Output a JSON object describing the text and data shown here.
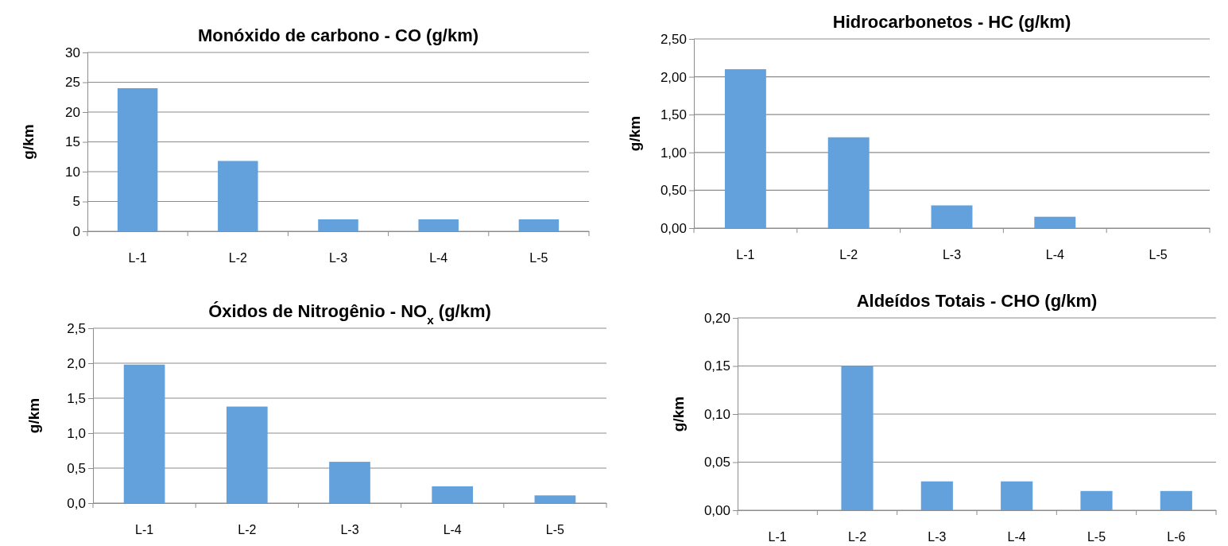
{
  "chart_data": [
    {
      "type": "bar",
      "title": "Monóxido de carbono - CO (g/km)",
      "ylabel": "g/km",
      "categories": [
        "L-1",
        "L-2",
        "L-3",
        "L-4",
        "L-5"
      ],
      "values": [
        24,
        11.8,
        2,
        2,
        2
      ],
      "color": "#63a1dc",
      "ylim": [
        0,
        30
      ],
      "yticks": [
        0,
        5,
        10,
        15,
        20,
        25,
        30
      ],
      "grid": "y"
    },
    {
      "type": "bar",
      "title": "Hidrocarbonetos - HC (g/km)",
      "ylabel": "g/km",
      "categories": [
        "L-1",
        "L-2",
        "L-3",
        "L-4",
        "L-5"
      ],
      "values": [
        2.1,
        1.2,
        0.3,
        0.15,
        0
      ],
      "color": "#63a1dc",
      "ylim": [
        0,
        2.5
      ],
      "yticks": [
        {
          "value": 0,
          "label": "0,00"
        },
        {
          "value": 0.5,
          "label": "0,50"
        },
        {
          "value": 1,
          "label": "1,00"
        },
        {
          "value": 1.5,
          "label": "1,50"
        },
        {
          "value": 2,
          "label": "2,00"
        },
        {
          "value": 2.5,
          "label": "2,50"
        }
      ],
      "grid": "y"
    },
    {
      "type": "bar",
      "title": "Óxidos de Nitrogênio - NO$_{x}$ (g/km)",
      "ylabel": "g/km",
      "categories": [
        "L-1",
        "L-2",
        "L-3",
        "L-4",
        "L-5"
      ],
      "values": [
        1.98,
        1.38,
        0.59,
        0.24,
        0.11
      ],
      "color": "#63a1dc",
      "ylim": [
        0,
        2.5
      ],
      "yticks": [
        {
          "value": 0,
          "label": "0,0"
        },
        {
          "value": 0.5,
          "label": "0,5"
        },
        {
          "value": 1,
          "label": "1,0"
        },
        {
          "value": 1.5,
          "label": "1,5"
        },
        {
          "value": 2,
          "label": "2,0"
        },
        {
          "value": 2.5,
          "label": "2,5"
        }
      ],
      "grid": "y"
    },
    {
      "type": "bar",
      "title": "Aldeídos Totais - CHO (g/km)",
      "ylabel": "g/km",
      "categories": [
        "L-1",
        "L-2",
        "L-3",
        "L-4",
        "L-5",
        "L-6"
      ],
      "values": [
        0,
        0.15,
        0.03,
        0.03,
        0.02,
        0.02
      ],
      "color": "#63a1dc",
      "ylim": [
        0,
        0.2
      ],
      "yticks": [
        {
          "value": 0,
          "label": "0,00"
        },
        {
          "value": 0.05,
          "label": "0,05"
        },
        {
          "value": 0.1,
          "label": "0,10"
        },
        {
          "value": 0.15,
          "label": "0,15"
        },
        {
          "value": 0.2,
          "label": "0,20"
        }
      ],
      "grid": "y"
    }
  ]
}
